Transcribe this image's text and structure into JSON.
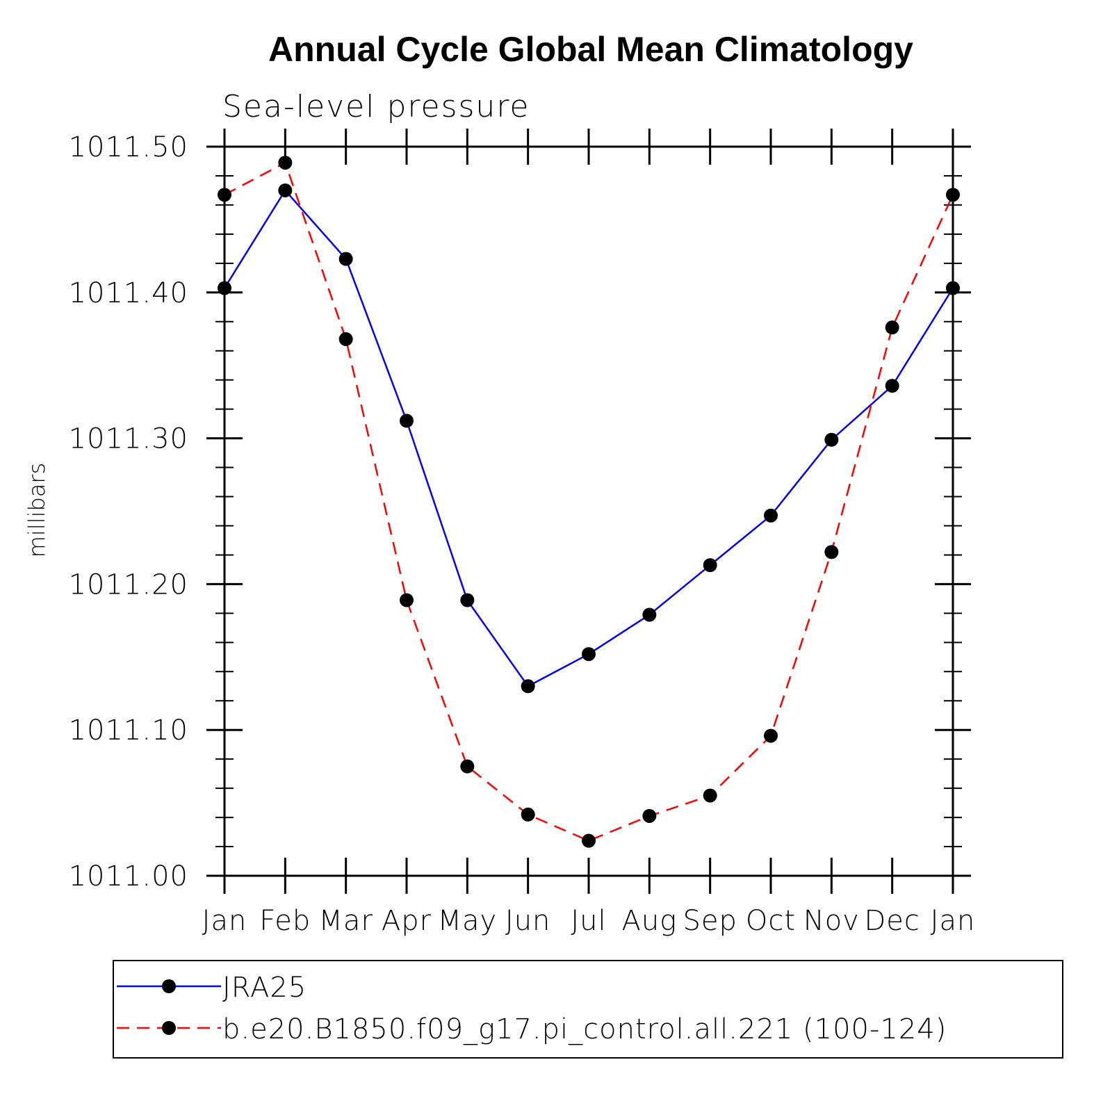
{
  "chart_data": {
    "type": "line",
    "title": "Annual Cycle Global Mean Climatology",
    "subtitle": "Sea-level pressure",
    "xlabel": "",
    "ylabel": "millibars",
    "categories": [
      "Jan",
      "Feb",
      "Mar",
      "Apr",
      "May",
      "Jun",
      "Jul",
      "Aug",
      "Sep",
      "Oct",
      "Nov",
      "Dec",
      "Jan"
    ],
    "ylim": [
      1011.0,
      1011.5
    ],
    "yticks": [
      "1011.00",
      "1011.10",
      "1011.20",
      "1011.30",
      "1011.40",
      "1011.50"
    ],
    "grid": false,
    "legend_position": "bottom",
    "series": [
      {
        "name": "JRA25",
        "color": "#0000ff",
        "dash": "solid",
        "marker": "circle",
        "values": [
          1011.403,
          1011.47,
          1011.423,
          1011.312,
          1011.189,
          1011.13,
          1011.152,
          1011.179,
          1011.213,
          1011.247,
          1011.299,
          1011.336,
          1011.403
        ]
      },
      {
        "name": "b.e20.B1850.f09_g17.pi_control.all.221 (100-124)",
        "color": "#ff0000",
        "dash": "dashed",
        "marker": "circle",
        "values": [
          1011.467,
          1011.489,
          1011.368,
          1011.189,
          1011.075,
          1011.042,
          1011.024,
          1011.041,
          1011.055,
          1011.096,
          1011.222,
          1011.376,
          1011.467
        ]
      }
    ]
  }
}
